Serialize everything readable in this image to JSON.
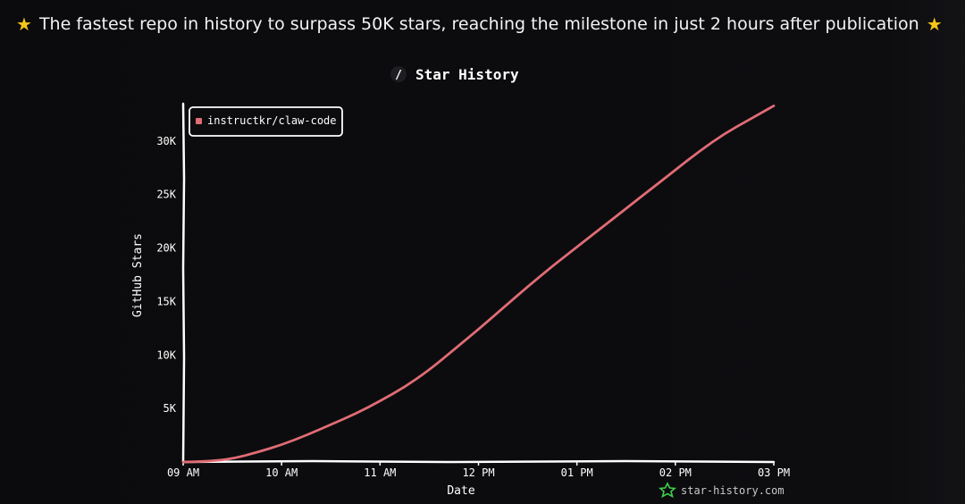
{
  "headline": {
    "left_icon": "star-emoji",
    "text": "The fastest repo in history to surpass 50K stars, reaching the milestone in just 2 hours after publication",
    "right_icon": "star-emoji"
  },
  "chart_data": {
    "type": "line",
    "title": "Star History",
    "title_icon": "slash-icon",
    "xlabel": "Date",
    "ylabel": "GitHub Stars",
    "x_ticks": [
      "09 AM",
      "10 AM",
      "11 AM",
      "12 PM",
      "01 PM",
      "02 PM",
      "03 PM"
    ],
    "y_ticks": [
      "5K",
      "10K",
      "15K",
      "20K",
      "25K",
      "30K"
    ],
    "y_tick_values": [
      5000,
      10000,
      15000,
      20000,
      25000,
      30000
    ],
    "xlim": [
      "09 AM",
      "03 PM"
    ],
    "ylim": [
      0,
      33500
    ],
    "grid": false,
    "legend_position": "top-left",
    "series": [
      {
        "name": "instructkr/claw-code",
        "color": "#e06c75",
        "x": [
          "09:00",
          "09:15",
          "09:30",
          "09:45",
          "10:00",
          "10:15",
          "10:30",
          "10:45",
          "11:00",
          "11:15",
          "11:30",
          "11:45",
          "12:00",
          "12:15",
          "12:30",
          "12:45",
          "13:00",
          "13:15",
          "13:30",
          "13:45",
          "14:00",
          "14:15",
          "14:30",
          "14:45",
          "15:00"
        ],
        "y": [
          0,
          50,
          300,
          900,
          1600,
          2500,
          3500,
          4500,
          5700,
          7000,
          8600,
          10500,
          12400,
          14400,
          16400,
          18300,
          20100,
          21900,
          23700,
          25500,
          27300,
          29100,
          30700,
          32000,
          33300
        ]
      }
    ],
    "watermark": "star-history.com",
    "watermark_icon": "star-history-logo-icon"
  },
  "colors": {
    "background": "#0b0b0d",
    "axis": "#ffffff",
    "line": "#e06c75",
    "watermark_logo": "#3ecf4a"
  }
}
